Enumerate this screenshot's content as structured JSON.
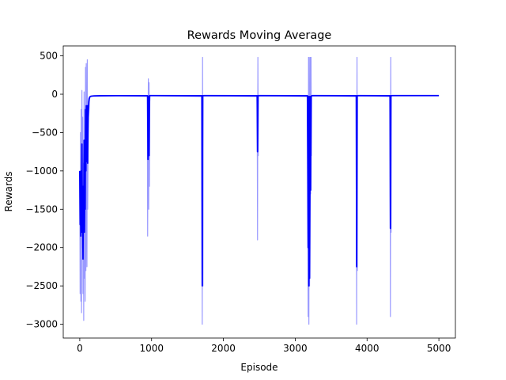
{
  "chart_data": {
    "type": "line",
    "title": "Rewards Moving Average",
    "xlabel": "Episode",
    "ylabel": "Rewards",
    "xlim": [
      -230,
      5230
    ],
    "ylim": [
      -3180,
      630
    ],
    "x_ticks": [
      0,
      1000,
      2000,
      3000,
      4000,
      5000
    ],
    "y_ticks": [
      500,
      0,
      -500,
      -1000,
      -1500,
      -2000,
      -2500,
      -3000
    ],
    "x_tick_labels": [
      "0",
      "1000",
      "2000",
      "3000",
      "4000",
      "5000"
    ],
    "y_tick_labels": [
      "500",
      "0",
      "−500",
      "−1000",
      "−1500",
      "−2000",
      "−2500",
      "−3000"
    ],
    "grid": false,
    "legend": "none",
    "colors": {
      "raw": "#0000ff",
      "avg": "#0000ff",
      "axis": "#000000"
    },
    "series": [
      {
        "role": "raw-rewards",
        "opacity": 0.4,
        "x": [
          0,
          5,
          10,
          15,
          20,
          25,
          30,
          35,
          40,
          45,
          50,
          55,
          60,
          65,
          70,
          75,
          80,
          85,
          90,
          95,
          100,
          105,
          110,
          115,
          120,
          125,
          130,
          135,
          140,
          150,
          170,
          200,
          300,
          500,
          940,
          945,
          950,
          955,
          960,
          965,
          970,
          975,
          980,
          990,
          1700,
          1705,
          1710,
          1715,
          1720,
          1730,
          2470,
          2475,
          2480,
          2485,
          2490,
          3170,
          3180,
          3185,
          3190,
          3195,
          3200,
          3210,
          3215,
          3220,
          3225,
          3230,
          3240,
          3850,
          3855,
          3860,
          3865,
          3870,
          3880,
          4320,
          4325,
          4330,
          4335,
          4340,
          4350,
          5000
        ],
        "y": [
          -1000,
          -2600,
          -500,
          -2700,
          -200,
          -2850,
          50,
          -2000,
          -300,
          -2600,
          -900,
          -2950,
          30,
          -2400,
          -1200,
          -2700,
          350,
          -2300,
          400,
          -1000,
          -2250,
          450,
          -1500,
          -800,
          -500,
          -300,
          -200,
          -100,
          -40,
          -25,
          -22,
          -20,
          -18,
          -18,
          -30,
          -1850,
          -400,
          200,
          -1500,
          150,
          -1200,
          -100,
          -20,
          -18,
          -30,
          -3000,
          480,
          -2500,
          -20,
          -18,
          -30,
          -1900,
          480,
          -800,
          -18,
          -30,
          -2900,
          480,
          -3000,
          480,
          -2500,
          480,
          -1300,
          480,
          -800,
          -20,
          -18,
          -30,
          -3000,
          480,
          -2300,
          -20,
          -18,
          -30,
          -2900,
          480,
          -1800,
          -20,
          -18,
          -18
        ]
      },
      {
        "role": "moving-average",
        "opacity": 1.0,
        "x": [
          0,
          5,
          10,
          15,
          20,
          25,
          30,
          35,
          40,
          45,
          50,
          55,
          60,
          65,
          70,
          75,
          80,
          85,
          90,
          95,
          100,
          105,
          110,
          115,
          120,
          125,
          130,
          140,
          150,
          170,
          200,
          300,
          500,
          940,
          945,
          950,
          955,
          960,
          965,
          970,
          975,
          990,
          1700,
          1705,
          1710,
          1715,
          1730,
          2470,
          2475,
          2480,
          2485,
          2490,
          3170,
          3180,
          3185,
          3190,
          3195,
          3200,
          3210,
          3215,
          3220,
          3225,
          3230,
          3240,
          3850,
          3855,
          3860,
          3865,
          3880,
          4320,
          4325,
          4330,
          4335,
          4350,
          5000
        ],
        "y": [
          -1000,
          -1700,
          -1200,
          -1850,
          -1000,
          -1800,
          -650,
          -1500,
          -1300,
          -2150,
          -1200,
          -1700,
          -600,
          -1800,
          -1150,
          -1500,
          -200,
          -1000,
          -150,
          -880,
          -500,
          -150,
          -900,
          -300,
          -200,
          -100,
          -60,
          -35,
          -28,
          -24,
          -22,
          -20,
          -19,
          -19,
          -30,
          -850,
          -600,
          -25,
          -800,
          -20,
          -18,
          -18,
          -20,
          -2500,
          -30,
          -20,
          -18,
          -20,
          -750,
          -30,
          -20,
          -18,
          -20,
          -2000,
          -30,
          -2500,
          -30,
          -2400,
          -30,
          -1250,
          -30,
          -25,
          -20,
          -18,
          -20,
          -2250,
          -30,
          -20,
          -18,
          -20,
          -1750,
          -30,
          -20,
          -18,
          -18
        ]
      }
    ]
  }
}
